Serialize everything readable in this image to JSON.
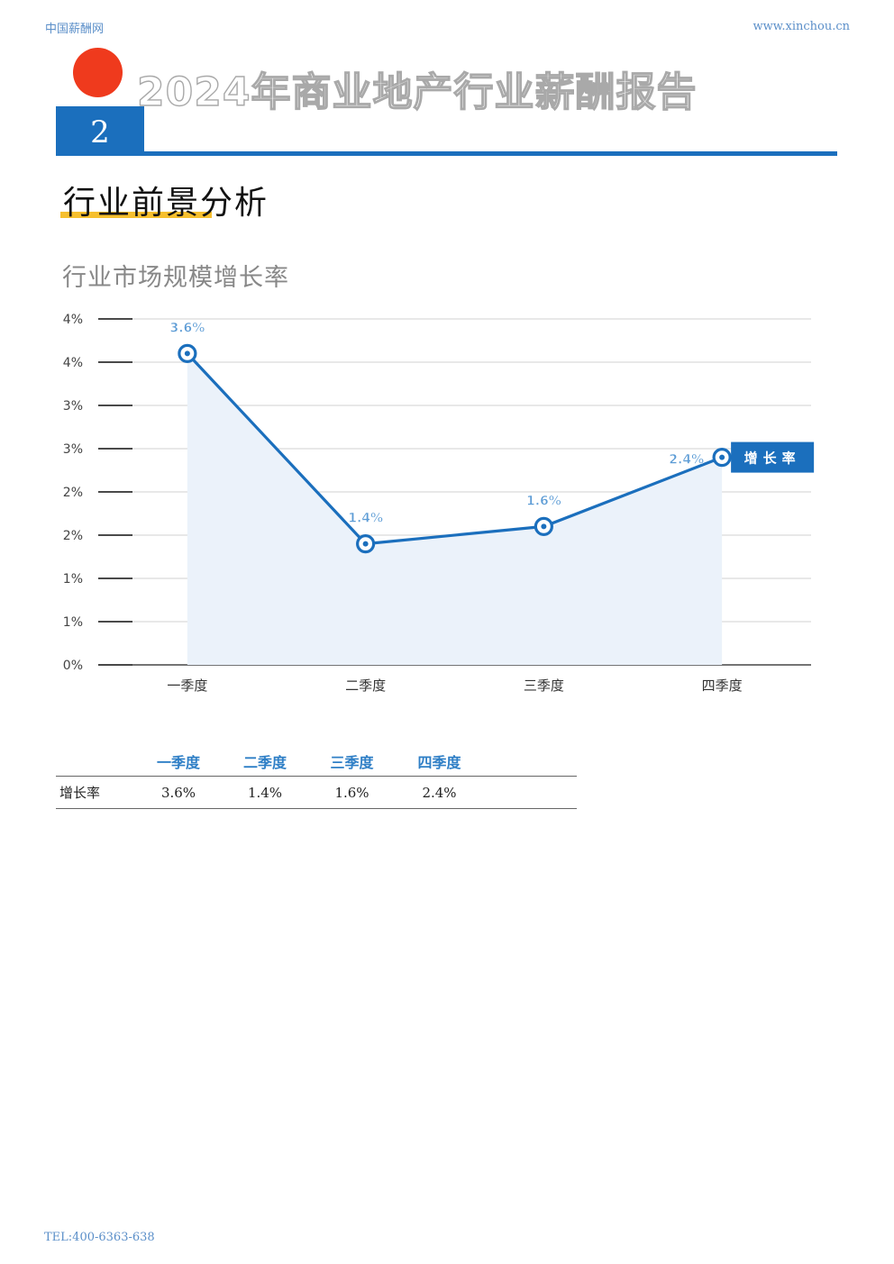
{
  "header": {
    "site_name": "中国薪酬网",
    "site_url": "www.xinchou.cn"
  },
  "report": {
    "title": "2024年商业地产行业薪酬报告",
    "section_number": "2",
    "section_title": "行业前景分析"
  },
  "chart_data": {
    "type": "area",
    "title": "行业市场规模增长率",
    "categories": [
      "一季度",
      "二季度",
      "三季度",
      "四季度"
    ],
    "series": [
      {
        "name": "增长率",
        "values": [
          3.6,
          1.4,
          1.6,
          2.4
        ],
        "labels": [
          "3.6%",
          "1.4%",
          "1.6%",
          "2.4%"
        ]
      }
    ],
    "ylim": [
      0,
      4
    ],
    "ytick_values": [
      0,
      0.5,
      1,
      1.5,
      2,
      2.5,
      3,
      3.5,
      4
    ],
    "ytick_labels": [
      "0%",
      "1%",
      "1%",
      "2%",
      "2%",
      "3%",
      "3%",
      "4%",
      "4%"
    ],
    "grid": true,
    "legend": "right",
    "colors": {
      "line": "#1b6fbd",
      "fill": "#ebf2fa",
      "label": "#5b9bd5",
      "grid": "#d9d9d9"
    }
  },
  "table": {
    "headers": [
      "",
      "一季度",
      "二季度",
      "三季度",
      "四季度",
      ""
    ],
    "rows": [
      {
        "label": "增长率",
        "cells": [
          "3.6%",
          "1.4%",
          "1.6%",
          "2.4%"
        ]
      }
    ]
  },
  "footer": {
    "tel": "TEL:400-6363-638"
  }
}
